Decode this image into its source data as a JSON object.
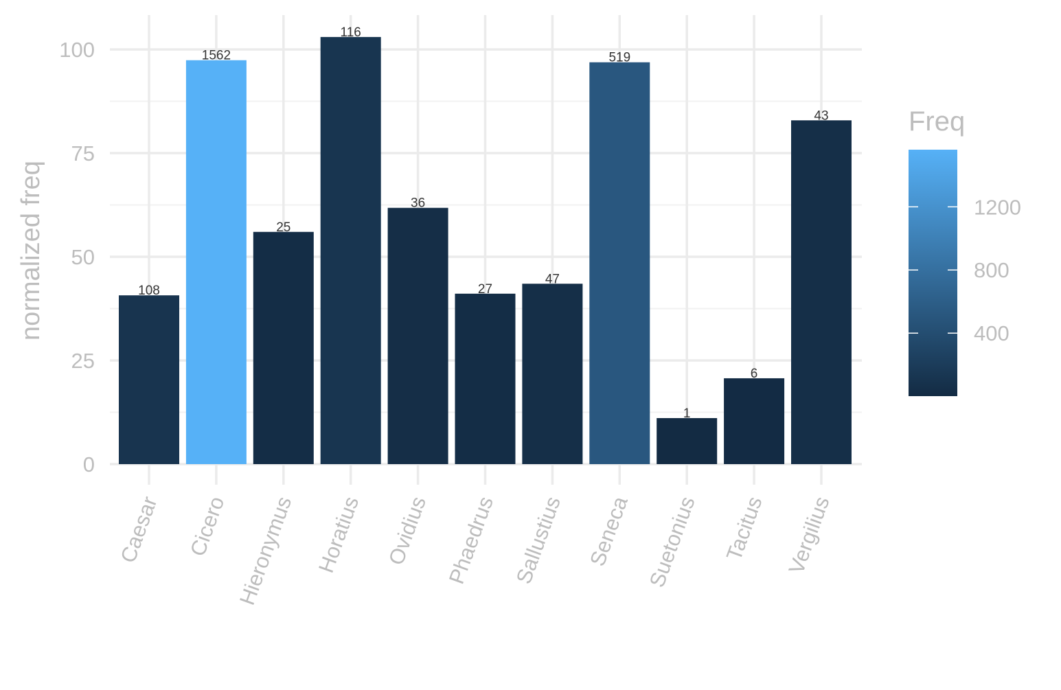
{
  "chart_data": {
    "type": "bar",
    "title": "",
    "xlabel": "",
    "ylabel": "normalized freq",
    "ylim": [
      0,
      105
    ],
    "yticks": [
      0,
      25,
      50,
      75,
      100
    ],
    "grid": true,
    "categories": [
      "Caesar",
      "Cicero",
      "Hieronymus",
      "Horatius",
      "Ovidius",
      "Phaedrus",
      "Sallustius",
      "Seneca",
      "Suetonius",
      "Tacitus",
      "Vergilius"
    ],
    "values": [
      40.7,
      97.4,
      56.0,
      103.0,
      61.8,
      41.1,
      43.5,
      96.9,
      11.1,
      20.7,
      82.9
    ],
    "bar_labels": [
      "108",
      "1562",
      "25",
      "116",
      "36",
      "27",
      "47",
      "519",
      "1",
      "6",
      "43"
    ],
    "freq": [
      108,
      1562,
      25,
      116,
      36,
      27,
      47,
      519,
      1,
      6,
      43
    ],
    "legend": {
      "title": "Freq",
      "placement": "right",
      "type": "colorbar",
      "range": [
        1,
        1562
      ],
      "ticks": [
        400,
        800,
        1200
      ],
      "tick_labels": [
        "400",
        "800",
        "1200"
      ],
      "low_color": "#132B43",
      "high_color": "#56B1F7"
    }
  }
}
